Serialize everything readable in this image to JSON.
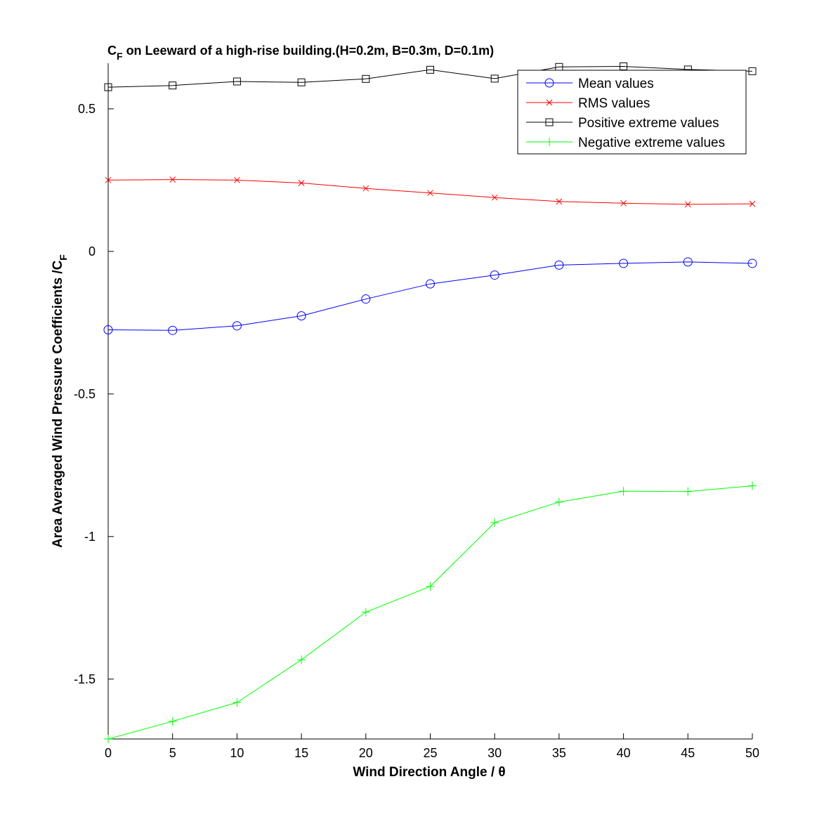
{
  "chart_data": {
    "type": "line",
    "title_main": "C",
    "title_sub": "F",
    "title_rest": " on Leeward of a high-rise building.(H=0.2m, B=0.3m, D=0.1m)",
    "xlabel": "Wind Direction Angle  / θ",
    "ylabel_main": "Area Averaged Wind Pressure Coefficients /C",
    "ylabel_sub": "F",
    "xlim": [
      0,
      50
    ],
    "ylim": [
      -1.71,
      0.66
    ],
    "xticks": [
      0,
      5,
      10,
      15,
      20,
      25,
      30,
      35,
      40,
      45,
      50
    ],
    "xtick_labels": [
      "0",
      "5",
      "10",
      "15",
      "20",
      "25",
      "30",
      "35",
      "40",
      "45",
      "50"
    ],
    "yticks": [
      0.5,
      0,
      -0.5,
      -1,
      -1.5
    ],
    "ytick_labels": [
      "0.5",
      "0",
      "-0.5",
      "-1",
      "-1.5"
    ],
    "grid": false,
    "legend_position": "top-right",
    "x": [
      0,
      5,
      10,
      15,
      20,
      25,
      30,
      35,
      40,
      45,
      50
    ],
    "series": [
      {
        "name": "Mean values",
        "color": "#0000ff",
        "marker": "circle",
        "values": [
          -0.275,
          -0.277,
          -0.261,
          -0.226,
          -0.167,
          -0.114,
          -0.083,
          -0.048,
          -0.042,
          -0.037,
          -0.042
        ]
      },
      {
        "name": "RMS values",
        "color": "#ff0000",
        "marker": "x",
        "values": [
          0.25,
          0.252,
          0.25,
          0.24,
          0.221,
          0.205,
          0.189,
          0.175,
          0.169,
          0.165,
          0.167
        ]
      },
      {
        "name": "Positive extreme values",
        "color": "#000000",
        "marker": "square",
        "values": [
          0.576,
          0.582,
          0.596,
          0.593,
          0.605,
          0.637,
          0.606,
          0.647,
          0.649,
          0.638,
          0.632
        ]
      },
      {
        "name": "Negative extreme values",
        "color": "#00ff00",
        "marker": "plus",
        "values": [
          -1.71,
          -1.648,
          -1.582,
          -1.432,
          -1.265,
          -1.175,
          -0.951,
          -0.879,
          -0.841,
          -0.842,
          -0.822
        ]
      }
    ]
  }
}
